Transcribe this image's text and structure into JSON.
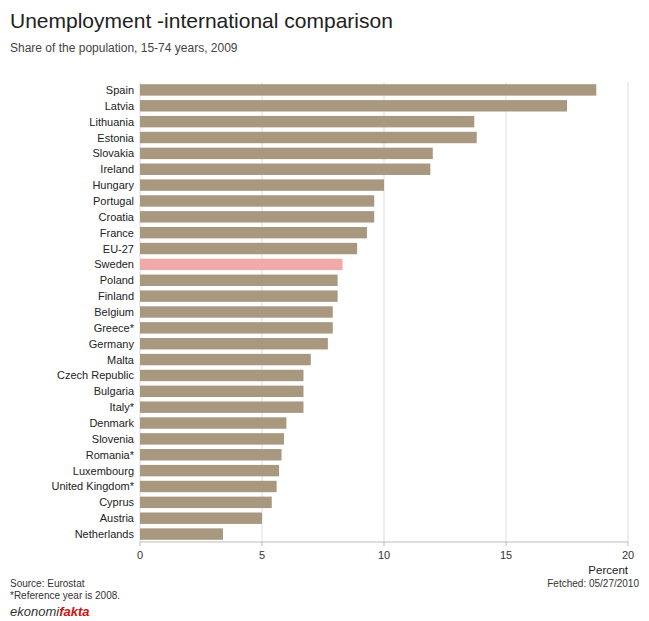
{
  "chart_data": {
    "type": "bar",
    "orientation": "horizontal",
    "title": "Unemployment -international comparison",
    "subtitle": "Share of the population, 15-74 years, 2009",
    "x_label": "Percent",
    "annotations": [
      "Source: Eurostat",
      "*Reference year is 2008.",
      "Fetched: 05/27/2010",
      "ekonomi",
      "fakta"
    ],
    "categories": [
      "Spain",
      "Latvia",
      "Lithuania",
      "Estonia",
      "Slovakia",
      "Ireland",
      "Hungary",
      "Portugal",
      "Croatia",
      "France",
      "EU-27",
      "Sweden",
      "Poland",
      "Finland",
      "Belgium",
      "Greece*",
      "Germany",
      "Malta",
      "Czech Republic",
      "Bulgaria",
      "Italy*",
      "Denmark",
      "Slovenia",
      "Romania*",
      "Luxembourg",
      "United Kingdom*",
      "Cyprus",
      "Austria",
      "Netherlands"
    ],
    "values": [
      18.7,
      17.5,
      13.7,
      13.8,
      12.0,
      11.9,
      10.0,
      9.6,
      9.6,
      9.3,
      8.9,
      8.3,
      8.1,
      8.1,
      7.9,
      7.9,
      7.7,
      7.0,
      6.7,
      6.7,
      6.7,
      6.0,
      5.9,
      5.8,
      5.7,
      5.6,
      5.4,
      5.0,
      3.4
    ],
    "colors": [
      "#A89880",
      "#A89880",
      "#A89880",
      "#A89880",
      "#A89880",
      "#A89880",
      "#A89880",
      "#A89880",
      "#A89880",
      "#A89880",
      "#A89880",
      "#F0AAAA",
      "#A89880",
      "#A89880",
      "#A89880",
      "#A89880",
      "#A89880",
      "#A89880",
      "#A89880",
      "#A89880",
      "#A89880",
      "#A89880",
      "#A89880",
      "#A89880",
      "#A89880",
      "#A89880",
      "#A89880",
      "#A89880",
      "#A89880"
    ],
    "xlim": [
      0,
      20
    ],
    "xticks": [
      0,
      5,
      10,
      15,
      20
    ],
    "grid": true
  }
}
